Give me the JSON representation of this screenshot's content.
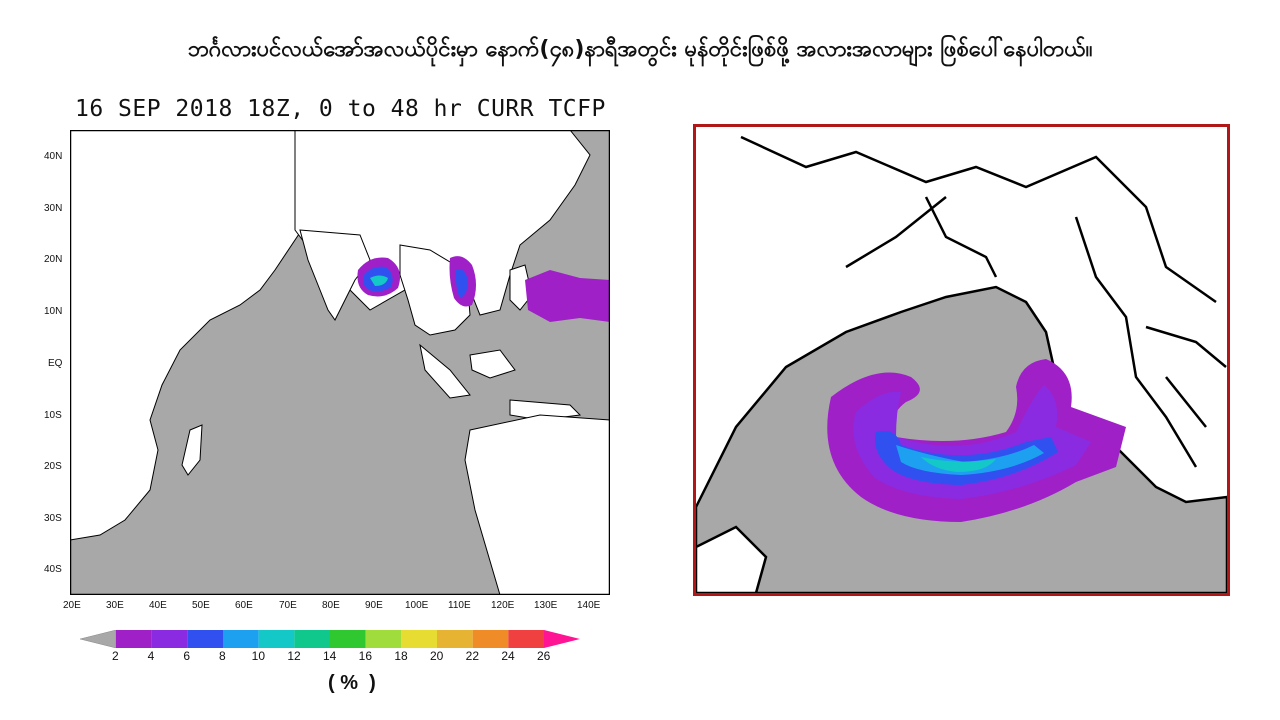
{
  "headline": "ဘင်္ဂလားပင်လယ်အော်အလယ်ပိုင်းမှာ နောက်(၄၈)နာရီအတွင်း မုန်တိုင်းဖြစ်ဖို့ အလားအလာများ ဖြစ်ပေါ်နေပါတယ်။",
  "map": {
    "title": "16 SEP 2018 18Z,  0 to  48 hr CURR TCFP",
    "lat_labels": [
      "40N",
      "30N",
      "20N",
      "10N",
      "EQ",
      "10S",
      "20S",
      "30S",
      "40S"
    ],
    "lon_labels": [
      "20E",
      "30E",
      "40E",
      "50E",
      "60E",
      "70E",
      "80E",
      "90E",
      "100E",
      "110E",
      "120E",
      "130E",
      "140E"
    ],
    "colors": {
      "ocean": "#a8a8a8",
      "land": "#ffffff",
      "coast": "#000000"
    }
  },
  "legend": {
    "ticks": [
      "2",
      "4",
      "6",
      "8",
      "10",
      "12",
      "14",
      "16",
      "18",
      "20",
      "22",
      "24",
      "26"
    ],
    "colors": [
      "#a8a8a8",
      "#a020c8",
      "#8a2be2",
      "#3050f0",
      "#1ea0f0",
      "#14c8c8",
      "#10c88c",
      "#30c830",
      "#a0dc3c",
      "#e6dc32",
      "#e6b432",
      "#f08c28",
      "#f04040",
      "#ff1493"
    ],
    "unit": "( %  )"
  },
  "zoom": {
    "frame_color": "#b01818"
  }
}
